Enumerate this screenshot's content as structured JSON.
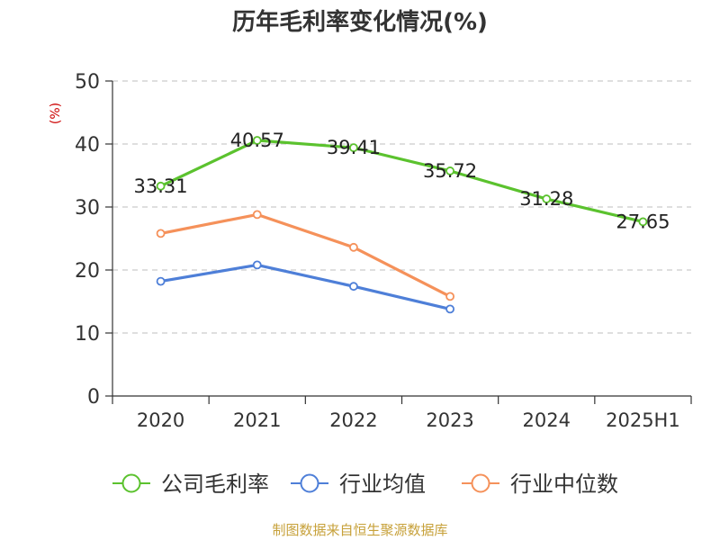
{
  "chart_data": {
    "type": "line",
    "title": "历年毛利率变化情况(%)",
    "ylabel": "(%)",
    "xlabel": "",
    "categories": [
      "2020",
      "2021",
      "2022",
      "2023",
      "2024",
      "2025H1"
    ],
    "ylim": [
      0,
      50
    ],
    "yticks": [
      0,
      10,
      20,
      30,
      40,
      50
    ],
    "grid": true,
    "legend_position": "bottom",
    "series": [
      {
        "name": "公司毛利率",
        "color": "#5bc22e",
        "values": [
          33.31,
          40.57,
          39.41,
          35.72,
          31.28,
          27.65
        ],
        "labels": [
          "33.31",
          "40.57",
          "39.41",
          "35.72",
          "31.28",
          "27.65"
        ]
      },
      {
        "name": "行业均值",
        "color": "#4e7fd8",
        "values": [
          18.2,
          20.8,
          17.4,
          13.8,
          null,
          null
        ]
      },
      {
        "name": "行业中位数",
        "color": "#f5915a",
        "values": [
          25.8,
          28.8,
          23.6,
          15.8,
          null,
          null
        ]
      }
    ]
  },
  "footer": {
    "source": "制图数据来自恒生聚源数据库"
  },
  "colors": {
    "source_text": "#c7a13a",
    "ylabel_text": "#cc0000",
    "axis": "#333333",
    "grid": "#cccccc"
  }
}
